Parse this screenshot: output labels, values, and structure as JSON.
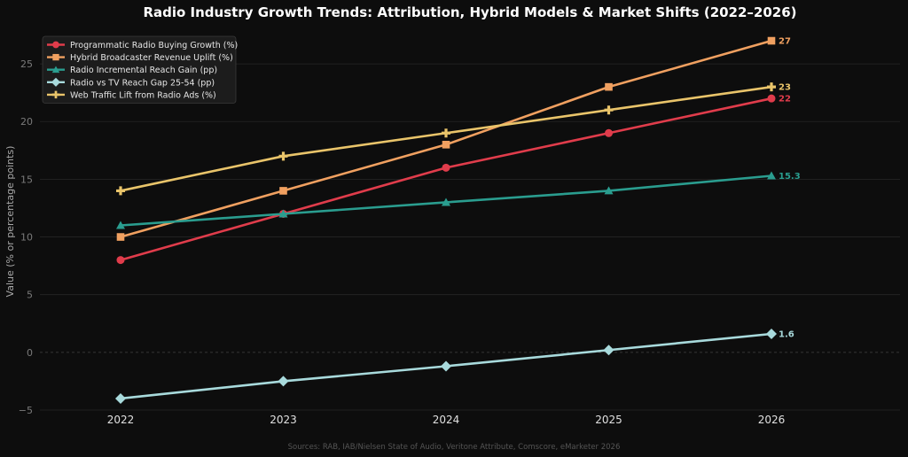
{
  "chart_data": {
    "type": "line",
    "title": "Radio Industry Growth Trends: Attribution, Hybrid Models & Market Shifts (2022–2026)",
    "xlabel": "",
    "ylabel": "Value (% or percentage points)",
    "x": [
      "2022",
      "2023",
      "2024",
      "2025",
      "2026"
    ],
    "y_ticks": [
      "−5",
      "0",
      "5",
      "10",
      "15",
      "20",
      "25"
    ],
    "ylim": [
      -5,
      28
    ],
    "grid": true,
    "legend_position": "top-left",
    "source": "Sources: RAB, IAB/Nielsen State of Audio, Veritone Attribute, Comscore, eMarketer 2026",
    "series": [
      {
        "name": "Programmatic Radio Buying Growth (%)",
        "values": [
          8,
          12,
          16,
          19,
          22
        ],
        "color": "#e03c4b",
        "marker": "circle",
        "end_label": "22"
      },
      {
        "name": "Hybrid Broadcaster Revenue Uplift (%)",
        "values": [
          10,
          14,
          18,
          23,
          27
        ],
        "color": "#f0a060",
        "marker": "square",
        "end_label": "27"
      },
      {
        "name": "Radio Incremental Reach Gain (pp)",
        "values": [
          11,
          12,
          13,
          14,
          15.3
        ],
        "color": "#2a9d8f",
        "marker": "triangle",
        "end_label": "15.3"
      },
      {
        "name": "Radio vs TV Reach Gap 25-54 (pp)",
        "values": [
          -4,
          -2.5,
          -1.2,
          0.2,
          1.6
        ],
        "color": "#a8dadc",
        "marker": "diamond",
        "end_label": "1.6"
      },
      {
        "name": "Web Traffic Lift from Radio Ads (%)",
        "values": [
          14,
          17,
          19,
          21,
          23
        ],
        "color": "#e9c46a",
        "marker": "plus",
        "end_label": "23"
      }
    ]
  }
}
